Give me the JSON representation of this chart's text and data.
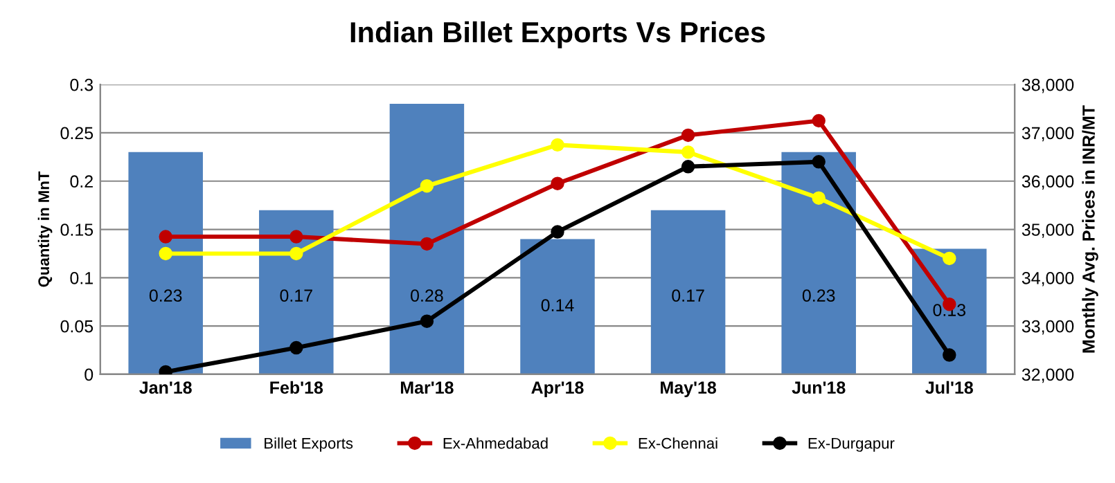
{
  "chart_data": {
    "type": "bar",
    "title": "Indian Billet Exports Vs Prices",
    "ylabel": "Quantity in MnT",
    "y2label": "Monthly Avg. Prices in INR/MT",
    "categories": [
      "Jan'18",
      "Feb'18",
      "Mar'18",
      "Apr'18",
      "May'18",
      "Jun'18",
      "Jul'18"
    ],
    "series": [
      {
        "name": "Billet Exports",
        "color": "#4f81bd",
        "values": [
          0.23,
          0.17,
          0.28,
          0.14,
          0.17,
          0.23,
          0.13
        ],
        "data_labels": true
      },
      {
        "name": "Ex-Ahmedabad",
        "type": "line",
        "axis": "y2",
        "color": "#c00000",
        "values": [
          34850,
          34850,
          34700,
          35950,
          36950,
          37250,
          33450
        ]
      },
      {
        "name": "Ex-Chennai",
        "type": "line",
        "axis": "y2",
        "color": "#ffff00",
        "values": [
          34500,
          34500,
          35900,
          36750,
          36600,
          35650,
          34400
        ]
      },
      {
        "name": "Ex-Durgapur",
        "type": "line",
        "axis": "y2",
        "color": "#000000",
        "values": [
          32050,
          32550,
          33100,
          34950,
          36300,
          36400,
          32400
        ]
      }
    ],
    "ylim": [
      0,
      0.3
    ],
    "yticks": [
      0,
      0.05,
      0.1,
      0.15,
      0.2,
      0.25,
      0.3
    ],
    "y2lim": [
      32000,
      38000
    ],
    "y2ticks": [
      {
        "value": 32000,
        "label": "32,000"
      },
      {
        "value": 33000,
        "label": "33,000"
      },
      {
        "value": 34000,
        "label": "34,000"
      },
      {
        "value": 35000,
        "label": "35,000"
      },
      {
        "value": 36000,
        "label": "36,000"
      },
      {
        "value": 37000,
        "label": "37,000"
      },
      {
        "value": 38000,
        "label": "38,000"
      }
    ],
    "grid": "y",
    "legend": "bottom",
    "marker": "circle",
    "line_style": "solid"
  }
}
